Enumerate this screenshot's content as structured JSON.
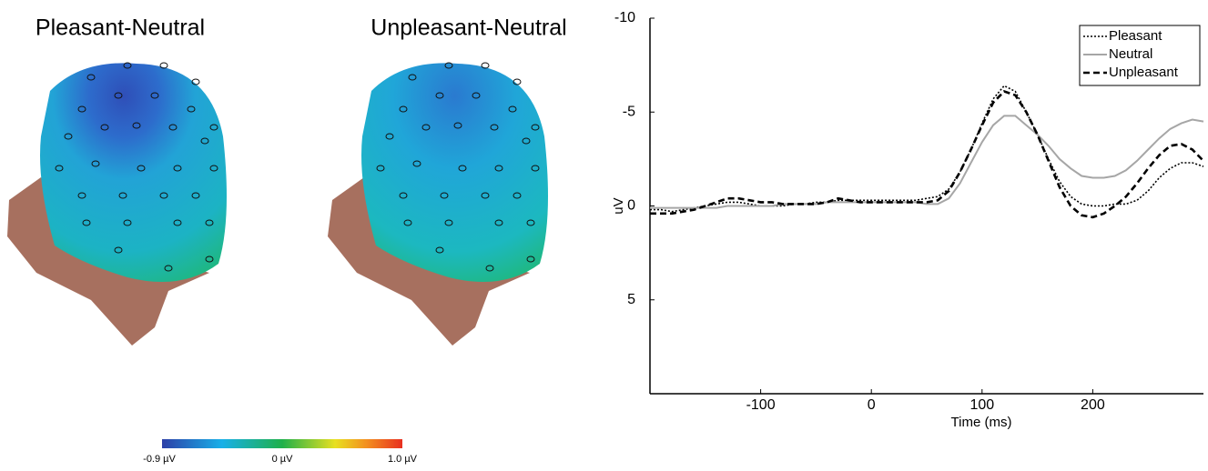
{
  "topomaps": {
    "titles": [
      "Pleasant-Neutral",
      "Unpleasant-Neutral"
    ],
    "colorbar_labels": [
      "-0.9 µV",
      "0 µV",
      "1.0 µV"
    ]
  },
  "chart_data": {
    "type": "line",
    "xlabel": "Time (ms)",
    "ylabel": "uV",
    "x": [
      -200,
      -190,
      -180,
      -170,
      -160,
      -150,
      -140,
      -130,
      -120,
      -110,
      -100,
      -90,
      -80,
      -70,
      -60,
      -50,
      -40,
      -30,
      -20,
      -10,
      0,
      10,
      20,
      30,
      40,
      50,
      60,
      70,
      80,
      90,
      100,
      110,
      120,
      130,
      140,
      150,
      160,
      170,
      180,
      190,
      200,
      210,
      220,
      230,
      240,
      250,
      260,
      270,
      280,
      290,
      300
    ],
    "xlim": [
      -200,
      300
    ],
    "xticks": [
      -100,
      0,
      100,
      200
    ],
    "ylim": [
      -10,
      10
    ],
    "yticks": [
      -10,
      -5,
      0,
      5
    ],
    "invert_y": true,
    "legend": "upper right",
    "series": [
      {
        "name": "Pleasant",
        "color": "#000000",
        "dash": "dotted",
        "values": [
          0.2,
          0.2,
          0.3,
          0.2,
          0.1,
          0.0,
          -0.1,
          -0.2,
          -0.2,
          -0.1,
          0.0,
          0.0,
          0.0,
          -0.1,
          -0.1,
          -0.2,
          -0.2,
          -0.3,
          -0.3,
          -0.3,
          -0.3,
          -0.3,
          -0.3,
          -0.3,
          -0.3,
          -0.4,
          -0.5,
          -0.9,
          -1.8,
          -3.0,
          -4.4,
          -5.7,
          -6.4,
          -6.1,
          -5.0,
          -3.8,
          -2.5,
          -1.3,
          -0.5,
          -0.1,
          0.0,
          0.0,
          -0.1,
          -0.1,
          -0.3,
          -0.8,
          -1.5,
          -2.0,
          -2.3,
          -2.3,
          -2.1
        ]
      },
      {
        "name": "Neutral",
        "color": "#a6a6a6",
        "dash": "solid",
        "values": [
          0.1,
          0.1,
          0.1,
          0.1,
          0.1,
          0.1,
          0.1,
          0.0,
          0.0,
          0.0,
          0.0,
          0.0,
          -0.1,
          -0.1,
          -0.1,
          -0.1,
          -0.2,
          -0.2,
          -0.2,
          -0.2,
          -0.2,
          -0.2,
          -0.2,
          -0.2,
          -0.2,
          -0.1,
          -0.1,
          -0.4,
          -1.2,
          -2.3,
          -3.4,
          -4.3,
          -4.8,
          -4.8,
          -4.3,
          -3.8,
          -3.2,
          -2.5,
          -2.0,
          -1.6,
          -1.5,
          -1.5,
          -1.6,
          -1.9,
          -2.4,
          -3.0,
          -3.6,
          -4.1,
          -4.4,
          -4.6,
          -4.5
        ]
      },
      {
        "name": "Unpleasant",
        "color": "#000000",
        "dash": "dashed",
        "values": [
          0.4,
          0.4,
          0.4,
          0.3,
          0.2,
          0.0,
          -0.2,
          -0.4,
          -0.4,
          -0.3,
          -0.2,
          -0.2,
          -0.1,
          -0.1,
          -0.1,
          -0.1,
          -0.2,
          -0.4,
          -0.3,
          -0.2,
          -0.2,
          -0.2,
          -0.2,
          -0.2,
          -0.2,
          -0.2,
          -0.3,
          -0.8,
          -1.8,
          -3.0,
          -4.3,
          -5.5,
          -6.1,
          -5.9,
          -5.0,
          -3.8,
          -2.4,
          -1.0,
          0.0,
          0.5,
          0.6,
          0.4,
          0.0,
          -0.5,
          -1.2,
          -2.0,
          -2.7,
          -3.2,
          -3.3,
          -3.0,
          -2.4
        ]
      }
    ]
  }
}
